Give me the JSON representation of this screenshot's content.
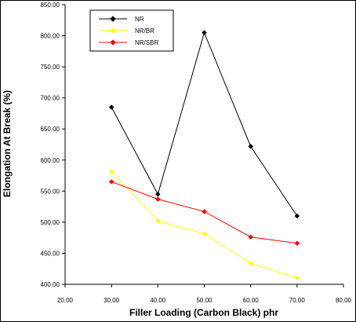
{
  "chart_data": {
    "type": "line",
    "xlabel": "Filler Loading (Carbon Black) phr",
    "ylabel": "Elongation At Break (%)",
    "xlim": [
      20,
      80
    ],
    "ylim": [
      400,
      850
    ],
    "x_ticks": [
      "20.00",
      "30.00",
      "40.00",
      "50.00",
      "60.00",
      "70.00",
      "80.00"
    ],
    "y_ticks": [
      "400.00",
      "450.00",
      "500.00",
      "550.00",
      "600.00",
      "650.00",
      "700.00",
      "750.00",
      "800.00",
      "850.00"
    ],
    "x": [
      30,
      40,
      50,
      60,
      70
    ],
    "series": [
      {
        "name": "NR",
        "color": "#000000",
        "values": [
          685,
          545,
          805,
          622,
          510
        ]
      },
      {
        "name": "NR/BR",
        "color": "#ffff00",
        "values": [
          581,
          502,
          481,
          434,
          410
        ]
      },
      {
        "name": "NR/SBR",
        "color": "#ff0000",
        "values": [
          565,
          537,
          517,
          476,
          466
        ]
      }
    ],
    "legend_placement": "top-left",
    "grid": false
  }
}
